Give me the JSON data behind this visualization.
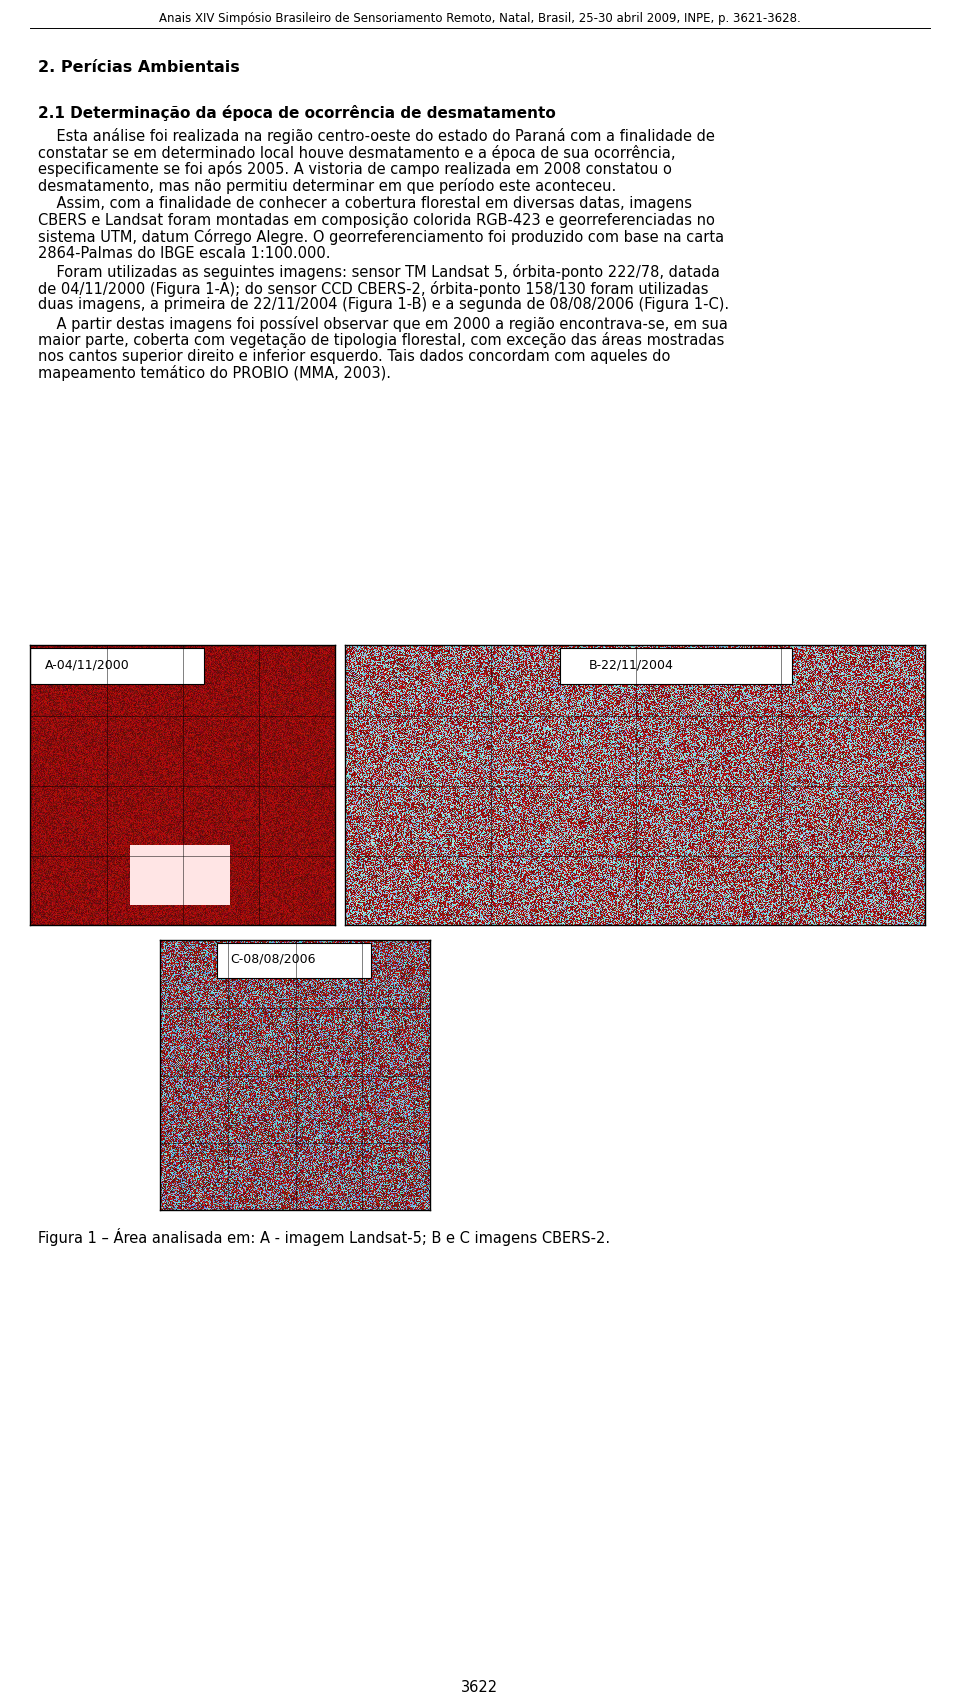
{
  "header": "Anais XIV Simpósio Brasileiro de Sensoriamento Remoto, Natal, Brasil, 25-30 abril 2009, INPE, p. 3621-3628.",
  "section_title": "2. Perícias Ambientais",
  "subsection_title": "2.1 Determinação da época de ocorrência de desmatamento",
  "paragraph1": "    Esta análise foi realizada na região centro-oeste do estado do Paraná com a finalidade de constatar se em determinado local houve desmatamento e a época de sua ocorrência, especificamente se foi após 2005. A vistoria de campo realizada em 2008 constatou o desmatamento, mas não permitiu determinar em que período este aconteceu.",
  "paragraph2": "    Assim, com a finalidade de conhecer a cobertura florestal em diversas datas, imagens CBERS e Landsat foram montadas em composição colorida RGB-423 e georreferenciadas no sistema UTM, datum Córrego Alegre. O georreferenciamento foi produzido com base na carta 2864-Palmas do IBGE escala 1:100.000.",
  "paragraph3": "    Foram utilizadas as seguintes imagens: sensor TM Landsat 5, órbita-ponto 222/78, datada de 04/11/2000 (Figura 1-A); do sensor CCD CBERS-2, órbita-ponto 158/130 foram utilizadas duas imagens, a primeira de 22/11/2004 (Figura 1-B) e a segunda de 08/08/2006 (Figura 1-C).",
  "paragraph4": "    A partir destas imagens foi possível observar que em 2000 a região encontrava-se, em sua maior parte, coberta com vegetação de tipologia florestal, com exceção das áreas mostradas nos cantos superior direito e inferior esquerdo. Tais dados concordam com aqueles do mapeamento temático do PROBIO (MMA, 2003).",
  "fig_caption": "Figura 1 – Área analisada em: A - imagem Landsat-5; B e C imagens CBERS-2.",
  "label_A": "A-04/11/2000",
  "label_B": "B-22/11/2004",
  "label_C": "C-08/08/2006",
  "page_number": "3622",
  "bg_color": "#ffffff",
  "text_color": "#000000",
  "font_size_header": 8.5,
  "font_size_body": 10.5,
  "font_size_section": 11.5,
  "font_size_subsection": 11.0
}
